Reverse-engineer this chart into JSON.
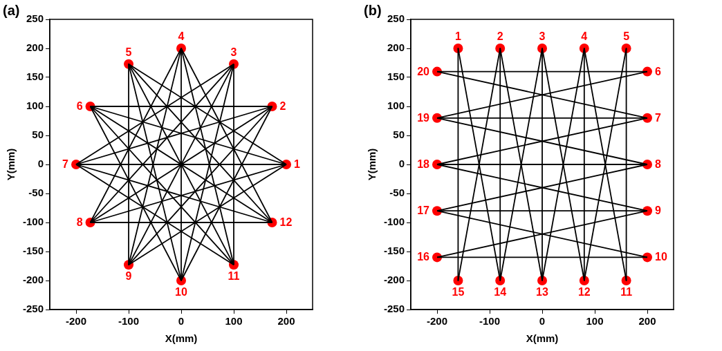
{
  "chart_data": [
    {
      "type": "scatter",
      "title": "(a)",
      "xlabel": "X(mm)",
      "ylabel": "Y(mm)",
      "xlim": [
        -250,
        250
      ],
      "ylim": [
        -250,
        250
      ],
      "xticks": [
        -200,
        -100,
        0,
        100,
        200
      ],
      "yticks": [
        -250,
        -200,
        -150,
        -100,
        -50,
        0,
        50,
        100,
        150,
        200,
        250
      ],
      "legend": false,
      "marker": "circle",
      "series": [
        {
          "type": "line",
          "color": "#000000",
          "marker": "none",
          "x": [
            200,
            -100
          ],
          "values": [
            0,
            173
          ]
        },
        {
          "type": "line",
          "color": "#000000",
          "marker": "none",
          "x": [
            173,
            -173
          ],
          "values": [
            100,
            100
          ]
        },
        {
          "type": "line",
          "color": "#000000",
          "marker": "none",
          "x": [
            100,
            -200
          ],
          "values": [
            173,
            0
          ]
        },
        {
          "type": "line",
          "color": "#000000",
          "marker": "none",
          "x": [
            0,
            -173
          ],
          "values": [
            200,
            -100
          ]
        },
        {
          "type": "line",
          "color": "#000000",
          "marker": "none",
          "x": [
            -100,
            -100
          ],
          "values": [
            173,
            -173
          ]
        },
        {
          "type": "line",
          "color": "#000000",
          "marker": "none",
          "x": [
            -173,
            0
          ],
          "values": [
            100,
            -200
          ]
        },
        {
          "type": "line",
          "color": "#000000",
          "marker": "none",
          "x": [
            -200,
            100
          ],
          "values": [
            0,
            -173
          ]
        },
        {
          "type": "line",
          "color": "#000000",
          "marker": "none",
          "x": [
            -173,
            173
          ],
          "values": [
            -100,
            -100
          ]
        },
        {
          "type": "line",
          "color": "#000000",
          "marker": "none",
          "x": [
            -100,
            200
          ],
          "values": [
            -173,
            0
          ]
        },
        {
          "type": "line",
          "color": "#000000",
          "marker": "none",
          "x": [
            0,
            173
          ],
          "values": [
            -200,
            100
          ]
        },
        {
          "type": "line",
          "color": "#000000",
          "marker": "none",
          "x": [
            100,
            100
          ],
          "values": [
            -173,
            173
          ]
        },
        {
          "type": "line",
          "color": "#000000",
          "marker": "none",
          "x": [
            173,
            0
          ],
          "values": [
            -100,
            200
          ]
        },
        {
          "type": "line",
          "color": "#000000",
          "marker": "none",
          "x": [
            200,
            -173
          ],
          "values": [
            0,
            100
          ]
        },
        {
          "type": "line",
          "color": "#000000",
          "marker": "none",
          "x": [
            173,
            -200
          ],
          "values": [
            100,
            0
          ]
        },
        {
          "type": "line",
          "color": "#000000",
          "marker": "none",
          "x": [
            100,
            -173
          ],
          "values": [
            173,
            -100
          ]
        },
        {
          "type": "line",
          "color": "#000000",
          "marker": "none",
          "x": [
            0,
            -100
          ],
          "values": [
            200,
            -173
          ]
        },
        {
          "type": "line",
          "color": "#000000",
          "marker": "none",
          "x": [
            -100,
            0
          ],
          "values": [
            173,
            -200
          ]
        },
        {
          "type": "line",
          "color": "#000000",
          "marker": "none",
          "x": [
            -173,
            100
          ],
          "values": [
            100,
            -173
          ]
        },
        {
          "type": "line",
          "color": "#000000",
          "marker": "none",
          "x": [
            -200,
            173
          ],
          "values": [
            0,
            -100
          ]
        },
        {
          "type": "line",
          "color": "#000000",
          "marker": "none",
          "x": [
            -173,
            200
          ],
          "values": [
            -100,
            0
          ]
        },
        {
          "type": "line",
          "color": "#000000",
          "marker": "none",
          "x": [
            -100,
            173
          ],
          "values": [
            -173,
            100
          ]
        },
        {
          "type": "line",
          "color": "#000000",
          "marker": "none",
          "x": [
            0,
            100
          ],
          "values": [
            -200,
            173
          ]
        },
        {
          "type": "line",
          "color": "#000000",
          "marker": "none",
          "x": [
            100,
            0
          ],
          "values": [
            -173,
            200
          ]
        },
        {
          "type": "line",
          "color": "#000000",
          "marker": "none",
          "x": [
            173,
            -100
          ],
          "values": [
            -100,
            173
          ]
        },
        {
          "type": "line",
          "color": "#000000",
          "marker": "none",
          "x": [
            200,
            -200
          ],
          "values": [
            0,
            0
          ]
        },
        {
          "type": "line",
          "color": "#000000",
          "marker": "none",
          "x": [
            173,
            -173
          ],
          "values": [
            100,
            -100
          ]
        },
        {
          "type": "line",
          "color": "#000000",
          "marker": "none",
          "x": [
            100,
            -100
          ],
          "values": [
            173,
            -173
          ]
        },
        {
          "type": "line",
          "color": "#000000",
          "marker": "none",
          "x": [
            0,
            0
          ],
          "values": [
            200,
            -200
          ]
        },
        {
          "type": "line",
          "color": "#000000",
          "marker": "none",
          "x": [
            -100,
            100
          ],
          "values": [
            173,
            -173
          ]
        },
        {
          "type": "line",
          "color": "#000000",
          "marker": "none",
          "x": [
            -173,
            173
          ],
          "values": [
            100,
            -100
          ]
        },
        {
          "color": "#ff0000",
          "x": [
            200,
            173,
            100,
            0,
            -100,
            -173,
            -200,
            -173,
            -100,
            0,
            100,
            173
          ],
          "values": [
            0,
            100,
            173,
            200,
            173,
            100,
            0,
            -100,
            -173,
            -200,
            -173,
            -100
          ]
        }
      ],
      "annotations": [
        {
          "text": "1",
          "x": 200,
          "y": 0
        },
        {
          "text": "2",
          "x": 173,
          "y": 100
        },
        {
          "text": "3",
          "x": 100,
          "y": 173
        },
        {
          "text": "4",
          "x": 0,
          "y": 200
        },
        {
          "text": "5",
          "x": -100,
          "y": 173
        },
        {
          "text": "6",
          "x": -173,
          "y": 100
        },
        {
          "text": "7",
          "x": -200,
          "y": 0
        },
        {
          "text": "8",
          "x": -173,
          "y": -100
        },
        {
          "text": "9",
          "x": -100,
          "y": -173
        },
        {
          "text": "10",
          "x": 0,
          "y": -200
        },
        {
          "text": "11",
          "x": 100,
          "y": -173
        },
        {
          "text": "12",
          "x": 173,
          "y": -100
        }
      ]
    },
    {
      "type": "scatter",
      "title": "(b)",
      "xlabel": "X(mm)",
      "ylabel": "Y(mm)",
      "xlim": [
        -250,
        250
      ],
      "ylim": [
        -250,
        250
      ],
      "xticks": [
        -200,
        -100,
        0,
        100,
        200
      ],
      "yticks": [
        -250,
        -200,
        -150,
        -100,
        -50,
        0,
        50,
        100,
        150,
        200,
        250
      ],
      "legend": false,
      "marker": "circle",
      "series": [
        {
          "type": "line",
          "color": "#000000",
          "marker": "none",
          "x": [
            -160,
            -160
          ],
          "values": [
            200,
            -200
          ]
        },
        {
          "type": "line",
          "color": "#000000",
          "marker": "none",
          "x": [
            -160,
            -80
          ],
          "values": [
            200,
            -200
          ]
        },
        {
          "type": "line",
          "color": "#000000",
          "marker": "none",
          "x": [
            -80,
            -160
          ],
          "values": [
            200,
            -200
          ]
        },
        {
          "type": "line",
          "color": "#000000",
          "marker": "none",
          "x": [
            -80,
            -80
          ],
          "values": [
            200,
            -200
          ]
        },
        {
          "type": "line",
          "color": "#000000",
          "marker": "none",
          "x": [
            -80,
            0
          ],
          "values": [
            200,
            -200
          ]
        },
        {
          "type": "line",
          "color": "#000000",
          "marker": "none",
          "x": [
            0,
            -80
          ],
          "values": [
            200,
            -200
          ]
        },
        {
          "type": "line",
          "color": "#000000",
          "marker": "none",
          "x": [
            0,
            0
          ],
          "values": [
            200,
            -200
          ]
        },
        {
          "type": "line",
          "color": "#000000",
          "marker": "none",
          "x": [
            0,
            80
          ],
          "values": [
            200,
            -200
          ]
        },
        {
          "type": "line",
          "color": "#000000",
          "marker": "none",
          "x": [
            80,
            0
          ],
          "values": [
            200,
            -200
          ]
        },
        {
          "type": "line",
          "color": "#000000",
          "marker": "none",
          "x": [
            80,
            80
          ],
          "values": [
            200,
            -200
          ]
        },
        {
          "type": "line",
          "color": "#000000",
          "marker": "none",
          "x": [
            80,
            160
          ],
          "values": [
            200,
            -200
          ]
        },
        {
          "type": "line",
          "color": "#000000",
          "marker": "none",
          "x": [
            160,
            80
          ],
          "values": [
            200,
            -200
          ]
        },
        {
          "type": "line",
          "color": "#000000",
          "marker": "none",
          "x": [
            160,
            160
          ],
          "values": [
            200,
            -200
          ]
        },
        {
          "type": "line",
          "color": "#000000",
          "marker": "none",
          "x": [
            -200,
            200
          ],
          "values": [
            160,
            160
          ]
        },
        {
          "type": "line",
          "color": "#000000",
          "marker": "none",
          "x": [
            -200,
            200
          ],
          "values": [
            160,
            80
          ]
        },
        {
          "type": "line",
          "color": "#000000",
          "marker": "none",
          "x": [
            -200,
            200
          ],
          "values": [
            80,
            160
          ]
        },
        {
          "type": "line",
          "color": "#000000",
          "marker": "none",
          "x": [
            -200,
            200
          ],
          "values": [
            80,
            80
          ]
        },
        {
          "type": "line",
          "color": "#000000",
          "marker": "none",
          "x": [
            -200,
            200
          ],
          "values": [
            80,
            0
          ]
        },
        {
          "type": "line",
          "color": "#000000",
          "marker": "none",
          "x": [
            -200,
            200
          ],
          "values": [
            0,
            80
          ]
        },
        {
          "type": "line",
          "color": "#000000",
          "marker": "none",
          "x": [
            -200,
            200
          ],
          "values": [
            0,
            0
          ]
        },
        {
          "type": "line",
          "color": "#000000",
          "marker": "none",
          "x": [
            -200,
            200
          ],
          "values": [
            0,
            -80
          ]
        },
        {
          "type": "line",
          "color": "#000000",
          "marker": "none",
          "x": [
            -200,
            200
          ],
          "values": [
            -80,
            0
          ]
        },
        {
          "type": "line",
          "color": "#000000",
          "marker": "none",
          "x": [
            -200,
            200
          ],
          "values": [
            -80,
            -80
          ]
        },
        {
          "type": "line",
          "color": "#000000",
          "marker": "none",
          "x": [
            -200,
            200
          ],
          "values": [
            -80,
            -160
          ]
        },
        {
          "type": "line",
          "color": "#000000",
          "marker": "none",
          "x": [
            -200,
            200
          ],
          "values": [
            -160,
            -80
          ]
        },
        {
          "type": "line",
          "color": "#000000",
          "marker": "none",
          "x": [
            -200,
            200
          ],
          "values": [
            -160,
            -160
          ]
        },
        {
          "color": "#ff0000",
          "x": [
            -160,
            -80,
            0,
            80,
            160,
            200,
            200,
            200,
            200,
            200,
            160,
            80,
            0,
            -80,
            -160,
            -200,
            -200,
            -200,
            -200,
            -200
          ],
          "values": [
            200,
            200,
            200,
            200,
            200,
            160,
            80,
            0,
            -80,
            -160,
            -200,
            -200,
            -200,
            -200,
            -200,
            -160,
            -80,
            0,
            80,
            160
          ]
        }
      ],
      "annotations": [
        {
          "text": "1",
          "x": -160,
          "y": 200
        },
        {
          "text": "2",
          "x": -80,
          "y": 200
        },
        {
          "text": "3",
          "x": 0,
          "y": 200
        },
        {
          "text": "4",
          "x": 80,
          "y": 200
        },
        {
          "text": "5",
          "x": 160,
          "y": 200
        },
        {
          "text": "6",
          "x": 200,
          "y": 160
        },
        {
          "text": "7",
          "x": 200,
          "y": 80
        },
        {
          "text": "8",
          "x": 200,
          "y": 0
        },
        {
          "text": "9",
          "x": 200,
          "y": -80
        },
        {
          "text": "10",
          "x": 200,
          "y": -160
        },
        {
          "text": "11",
          "x": 160,
          "y": -200
        },
        {
          "text": "12",
          "x": 80,
          "y": -200
        },
        {
          "text": "13",
          "x": 0,
          "y": -200
        },
        {
          "text": "14",
          "x": -80,
          "y": -200
        },
        {
          "text": "15",
          "x": -160,
          "y": -200
        },
        {
          "text": "16",
          "x": -200,
          "y": -160
        },
        {
          "text": "17",
          "x": -200,
          "y": -80
        },
        {
          "text": "18",
          "x": -200,
          "y": 0
        },
        {
          "text": "19",
          "x": -200,
          "y": 80
        },
        {
          "text": "20",
          "x": -200,
          "y": 160
        }
      ]
    }
  ]
}
